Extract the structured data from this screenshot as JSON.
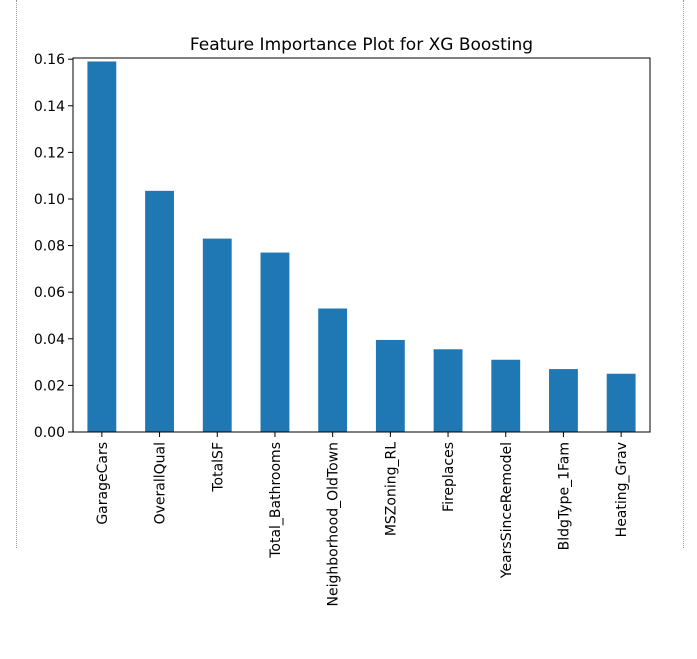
{
  "chart_data": {
    "type": "bar",
    "title": "Feature Importance Plot for XG Boosting",
    "xlabel": "",
    "ylabel": "",
    "categories": [
      "GarageCars",
      "OverallQual",
      "TotalSF",
      "Total_Bathrooms",
      "Neighborhood_OldTown",
      "MSZoning_RL",
      "Fireplaces",
      "YearsSinceRemodel",
      "BldgType_1Fam",
      "Heating_Grav"
    ],
    "values": [
      0.159,
      0.1035,
      0.083,
      0.077,
      0.053,
      0.0395,
      0.0355,
      0.031,
      0.027,
      0.025
    ],
    "ylim": [
      0,
      0.1605
    ],
    "yticks": [
      0.0,
      0.02,
      0.04,
      0.06,
      0.08,
      0.1,
      0.12,
      0.14,
      0.16
    ],
    "ytick_labels": [
      "0.00",
      "0.02",
      "0.04",
      "0.06",
      "0.08",
      "0.10",
      "0.12",
      "0.14",
      "0.16"
    ],
    "grid": false,
    "legend": "none",
    "bar_color": "#1f77b4"
  }
}
